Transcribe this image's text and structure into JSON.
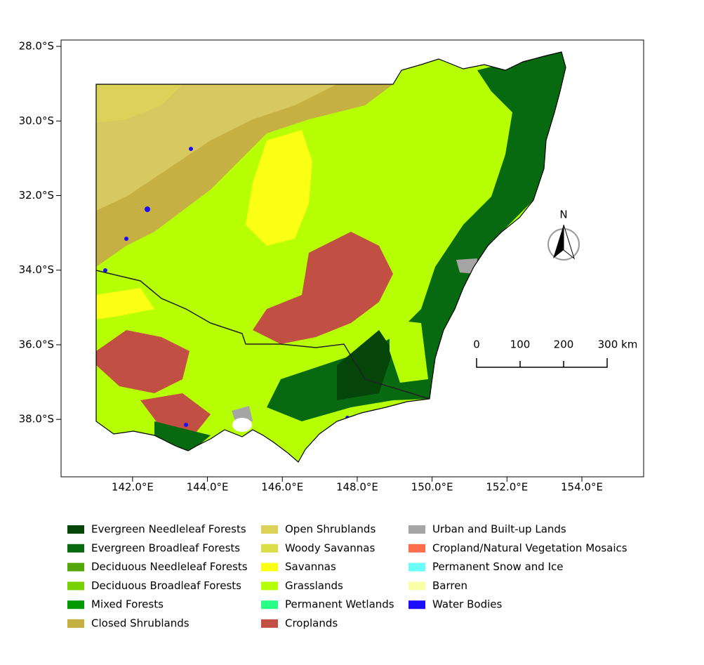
{
  "map": {
    "lat_range": [
      -27.83,
      -39.54
    ],
    "lon_range": [
      140.09,
      155.65
    ],
    "lat_ticks": [
      {
        "value": -28,
        "label": "28.0°S"
      },
      {
        "value": -30,
        "label": "30.0°S"
      },
      {
        "value": -32,
        "label": "32.0°S"
      },
      {
        "value": -34,
        "label": "34.0°S"
      },
      {
        "value": -36,
        "label": "36.0°S"
      },
      {
        "value": -38,
        "label": "38.0°S"
      }
    ],
    "lon_ticks": [
      {
        "value": 142,
        "label": "142.0°E"
      },
      {
        "value": 144,
        "label": "144.0°E"
      },
      {
        "value": 146,
        "label": "146.0°E"
      },
      {
        "value": 148,
        "label": "148.0°E"
      },
      {
        "value": 150,
        "label": "150.0°E"
      },
      {
        "value": 152,
        "label": "152.0°E"
      },
      {
        "value": 154,
        "label": "154.0°E"
      }
    ]
  },
  "north_label": "N",
  "scale_bar": {
    "labels": [
      "0",
      "100",
      "200",
      "300 km"
    ]
  },
  "legend": [
    {
      "label": "Evergreen Needleleaf Forests",
      "color": "#05450a"
    },
    {
      "label": "Evergreen Broadleaf Forests",
      "color": "#086a10"
    },
    {
      "label": "Deciduous Needleleaf Forests",
      "color": "#54a708"
    },
    {
      "label": "Deciduous Broadleaf Forests",
      "color": "#78d203"
    },
    {
      "label": "Mixed Forests",
      "color": "#009900"
    },
    {
      "label": "Closed Shrublands",
      "color": "#c6b044"
    },
    {
      "label": "Open Shrublands",
      "color": "#dcd159"
    },
    {
      "label": "Woody Savannas",
      "color": "#dade48"
    },
    {
      "label": "Savannas",
      "color": "#fbff13"
    },
    {
      "label": "Grasslands",
      "color": "#b6ff05"
    },
    {
      "label": "Permanent Wetlands",
      "color": "#27ff87"
    },
    {
      "label": "Croplands",
      "color": "#c24f44"
    },
    {
      "label": "Urban and Built-up Lands",
      "color": "#a5a5a5"
    },
    {
      "label": "Cropland/Natural Vegetation Mosaics",
      "color": "#ff6d4c"
    },
    {
      "label": "Permanent Snow and Ice",
      "color": "#69fff8"
    },
    {
      "label": "Barren",
      "color": "#f9ffa4"
    },
    {
      "label": "Water Bodies",
      "color": "#1c0dff"
    }
  ]
}
